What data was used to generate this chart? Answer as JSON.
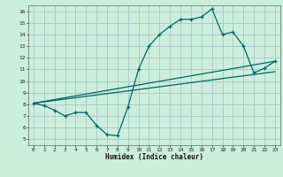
{
  "xlabel": "Humidex (Indice chaleur)",
  "bg_color": "#cceedd",
  "grid_color": "#aacccc",
  "line_color": "#006666",
  "xlim": [
    -0.5,
    23.5
  ],
  "ylim": [
    4.5,
    16.5
  ],
  "xticks": [
    0,
    1,
    2,
    3,
    4,
    5,
    6,
    7,
    8,
    9,
    10,
    11,
    12,
    13,
    14,
    15,
    16,
    17,
    18,
    19,
    20,
    21,
    22,
    23
  ],
  "yticks": [
    5,
    6,
    7,
    8,
    9,
    10,
    11,
    12,
    13,
    14,
    15,
    16
  ],
  "curve1_x": [
    0,
    1,
    2,
    3,
    4,
    5,
    6,
    7,
    8,
    9,
    10,
    11,
    12,
    13,
    14,
    15,
    16,
    17,
    18,
    19,
    20,
    21,
    22,
    23
  ],
  "curve1_y": [
    8.1,
    7.9,
    7.5,
    7.0,
    7.3,
    7.3,
    6.2,
    5.4,
    5.3,
    7.8,
    11.0,
    13.0,
    14.0,
    14.7,
    15.3,
    15.3,
    15.5,
    16.2,
    14.0,
    14.2,
    13.0,
    10.7,
    11.1,
    11.7
  ],
  "line1_x": [
    0,
    23
  ],
  "line1_y": [
    8.1,
    10.8
  ],
  "line2_x": [
    0,
    23
  ],
  "line2_y": [
    8.1,
    11.7
  ]
}
